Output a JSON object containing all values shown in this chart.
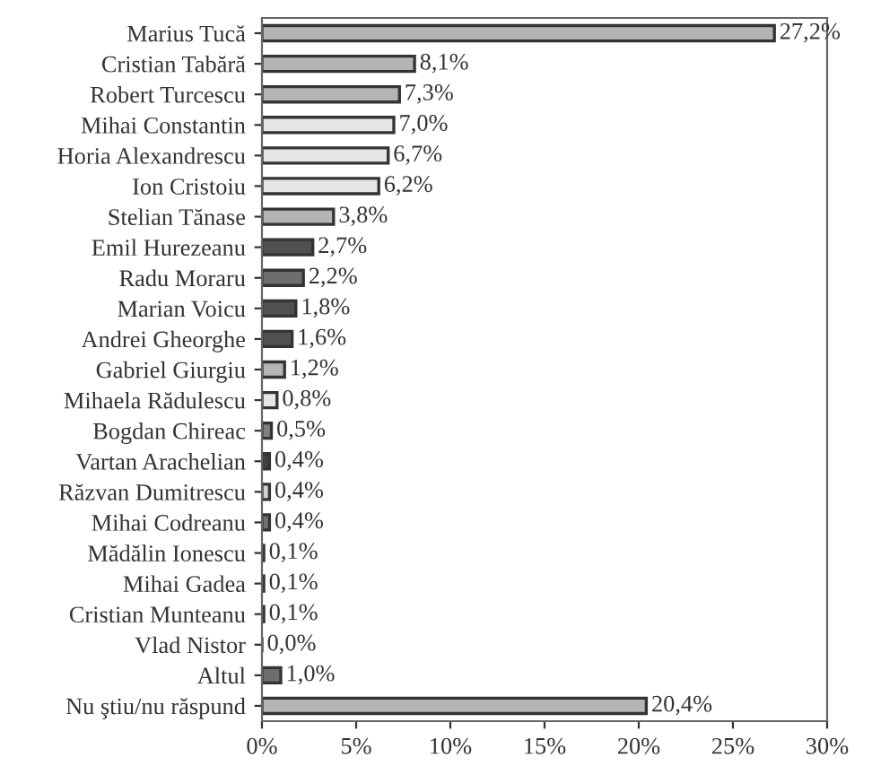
{
  "chart_data": {
    "type": "bar",
    "orientation": "horizontal",
    "categories": [
      "Marius Tucă",
      "Cristian Tabără",
      "Robert Turcescu",
      "Mihai Constantin",
      "Horia Alexandrescu",
      "Ion Cristoiu",
      "Stelian Tănase",
      "Emil Hurezeanu",
      "Radu Moraru",
      "Marian Voicu",
      "Andrei Gheorghe",
      "Gabriel Giurgiu",
      "Mihaela Rădulescu",
      "Bogdan Chireac",
      "Vartan Arachelian",
      "Răzvan Dumitrescu",
      "Mihai Codreanu",
      "Mădălin Ionescu",
      "Mihai Gadea",
      "Cristian Munteanu",
      "Vlad Nistor",
      "Altul",
      "Nu ştiu/nu răspund"
    ],
    "values": [
      27.2,
      8.1,
      7.3,
      7.0,
      6.7,
      6.2,
      3.8,
      2.7,
      2.2,
      1.8,
      1.6,
      1.2,
      0.8,
      0.5,
      0.4,
      0.4,
      0.4,
      0.1,
      0.1,
      0.1,
      0.0,
      1.0,
      20.4
    ],
    "colors": [
      "#b4b4b4",
      "#b4b4b4",
      "#b4b4b4",
      "#e6e6e6",
      "#e6e6e6",
      "#e6e6e6",
      "#b4b4b4",
      "#505050",
      "#6e6e6e",
      "#505050",
      "#505050",
      "#b4b4b4",
      "#e6e6e6",
      "#808080",
      "#404040",
      "#d0d0d0",
      "#707070",
      "#404040",
      "#404040",
      "#404040",
      "#333333",
      "#6e6e6e",
      "#b4b4b4"
    ],
    "value_labels": [
      "27,2%",
      "8,1%",
      "7,3%",
      "7,0%",
      "6,7%",
      "6,2%",
      "3,8%",
      "2,7%",
      "2,2%",
      "1,8%",
      "1,6%",
      "1,2%",
      "0,8%",
      "0,5%",
      "0,4%",
      "0,4%",
      "0,4%",
      "0,1%",
      "0,1%",
      "0,1%",
      "0,0%",
      "1,0%",
      "20,4%"
    ],
    "xlim": [
      0,
      30
    ],
    "xticks": [
      {
        "value": 0,
        "label": "0%"
      },
      {
        "value": 5,
        "label": "5%"
      },
      {
        "value": 10,
        "label": "10%"
      },
      {
        "value": 15,
        "label": "15%"
      },
      {
        "value": 20,
        "label": "20%"
      },
      {
        "value": 25,
        "label": "25%"
      },
      {
        "value": 30,
        "label": "30%"
      }
    ],
    "grid": false,
    "legend": false
  }
}
